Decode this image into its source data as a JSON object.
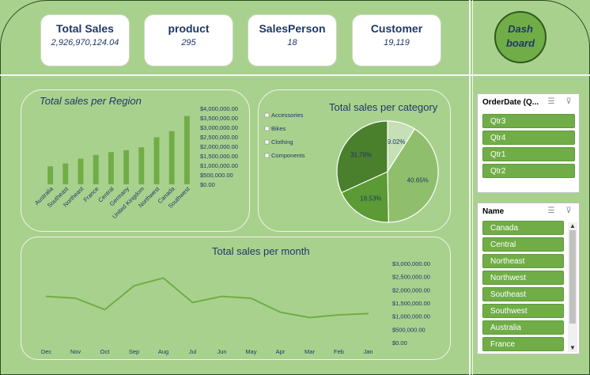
{
  "kpis": [
    {
      "title": "Total Sales",
      "value": "2,926,970,124.04"
    },
    {
      "title": "product",
      "value": "295"
    },
    {
      "title": "SalesPerson",
      "value": "18"
    },
    {
      "title": "Customer",
      "value": "19,119"
    }
  ],
  "dashboard_button": {
    "line1": "Dash",
    "line2": "board"
  },
  "region_chart": {
    "type": "bar",
    "title": "Total sales per Region",
    "categories": [
      "Australia",
      "Southeast",
      "Northeast",
      "France",
      "Central",
      "Germany",
      "United Kingdom",
      "Northwest",
      "Canada",
      "Southwest"
    ],
    "values": [
      950000,
      1100000,
      1350000,
      1550000,
      1700000,
      1800000,
      1950000,
      2480000,
      2800000,
      3600000
    ],
    "ylim": [
      0,
      4000000
    ],
    "y_ticks": [
      "$4,000,000.00",
      "$3,500,000.00",
      "$3,000,000.00",
      "$2,500,000.00",
      "$2,000,000.00",
      "$1,500,000.00",
      "$1,000,000.00",
      "$500,000.00",
      "$0.00"
    ],
    "color": "#70ad47"
  },
  "category_chart": {
    "type": "pie",
    "title": "Total sales per category",
    "legend": [
      "Accessories",
      "Bikes",
      "Clothing",
      "Components"
    ],
    "slices": [
      {
        "label": "9.02%",
        "value": 9.02,
        "color": "#c5e0b4"
      },
      {
        "label": "40.65%",
        "value": 40.65,
        "color": "#8fbf6c"
      },
      {
        "label": "18.53%",
        "value": 18.53,
        "color": "#5b9a34"
      },
      {
        "label": "31.79%",
        "value": 31.79,
        "color": "#4a7f2c"
      }
    ]
  },
  "month_chart": {
    "type": "line",
    "title": "Total sales per month",
    "categories": [
      "Dec",
      "Nov",
      "Oct",
      "Sep",
      "Aug",
      "Jul",
      "Jun",
      "May",
      "Apr",
      "Mar",
      "Feb",
      "Jan"
    ],
    "values": [
      1750000,
      1680000,
      1250000,
      2150000,
      2450000,
      1520000,
      1750000,
      1680000,
      1150000,
      950000,
      1050000,
      1100000
    ],
    "ylim": [
      0,
      3000000
    ],
    "y_ticks": [
      "$3,000,000.00",
      "$2,500,000.00",
      "$2,000,000.00",
      "$1,500,000.00",
      "$1,000,000.00",
      "$500,000.00",
      "$0.00"
    ],
    "color": "#70ad47"
  },
  "slicers": {
    "orderdate": {
      "title": "OrderDate (Q...",
      "items": [
        "Qtr3",
        "Qtr4",
        "Qtr1",
        "Qtr2"
      ]
    },
    "name": {
      "title": "Name",
      "items": [
        "Canada",
        "Central",
        "Northeast",
        "Northwest",
        "Southeast",
        "Southwest",
        "Australia",
        "France"
      ]
    }
  }
}
